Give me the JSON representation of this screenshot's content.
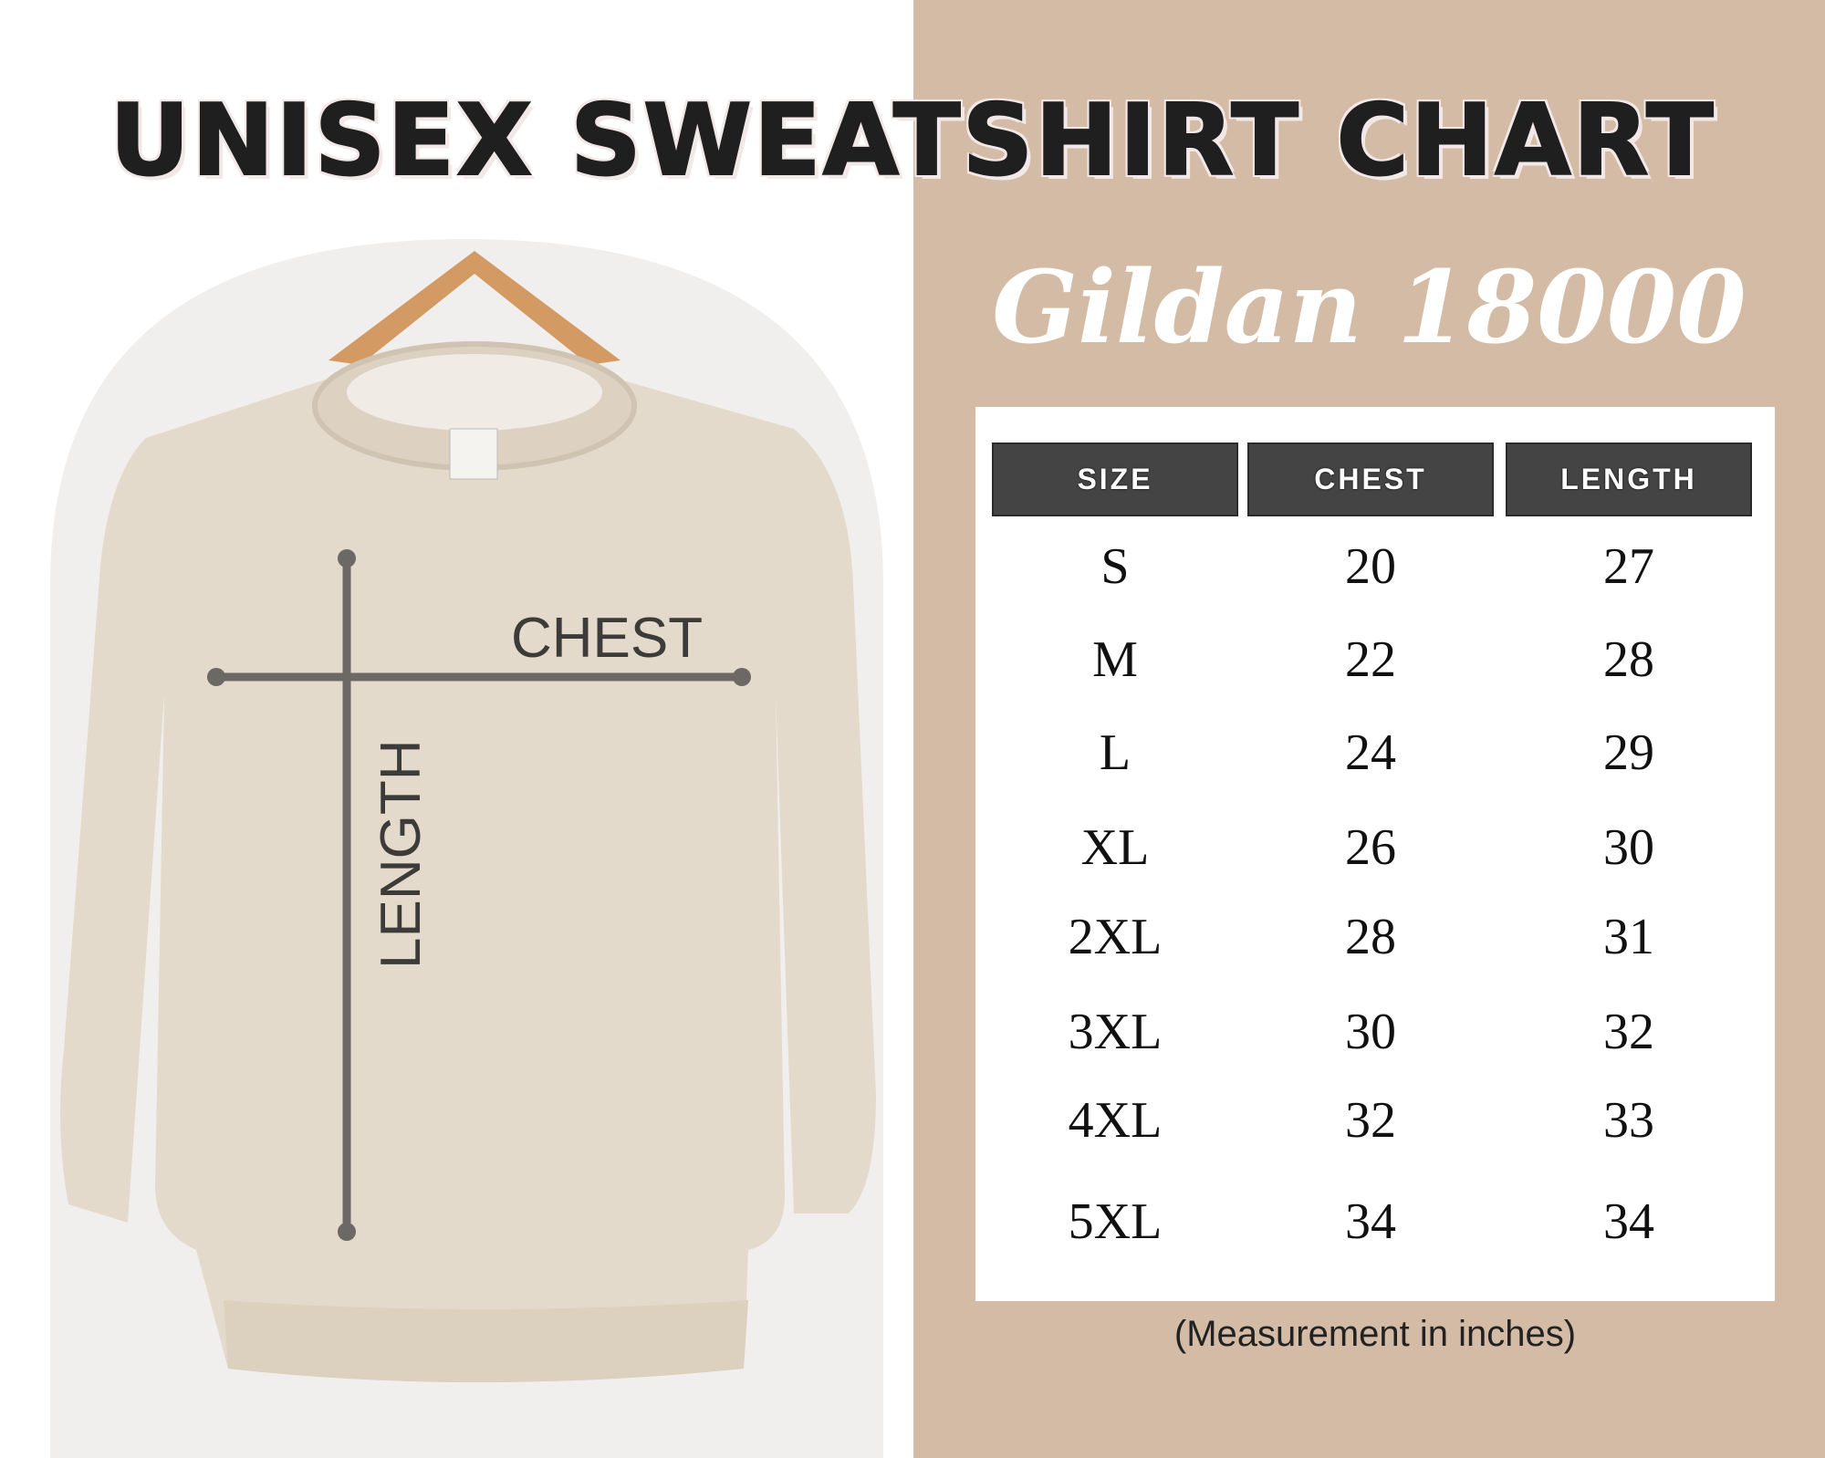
{
  "title": "UNISEX SWEATSHIRT CHART",
  "subtitle": "Gildan 18000",
  "diagram": {
    "chest_label": "CHEST",
    "length_label": "LENGTH"
  },
  "table": {
    "headers": [
      "SIZE",
      "CHEST",
      "LENGTH"
    ],
    "rows": [
      [
        "S",
        "20",
        "27"
      ],
      [
        "M",
        "22",
        "28"
      ],
      [
        "L",
        "24",
        "29"
      ],
      [
        "XL",
        "26",
        "30"
      ],
      [
        "2XL",
        "28",
        "31"
      ],
      [
        "3XL",
        "30",
        "32"
      ],
      [
        "4XL",
        "32",
        "33"
      ],
      [
        "5XL",
        "34",
        "34"
      ]
    ]
  },
  "note": "(Measurement in inches)",
  "colors": {
    "panel": "#d4bba5",
    "header": "#444444",
    "sweatshirt": "#e4dacb"
  }
}
